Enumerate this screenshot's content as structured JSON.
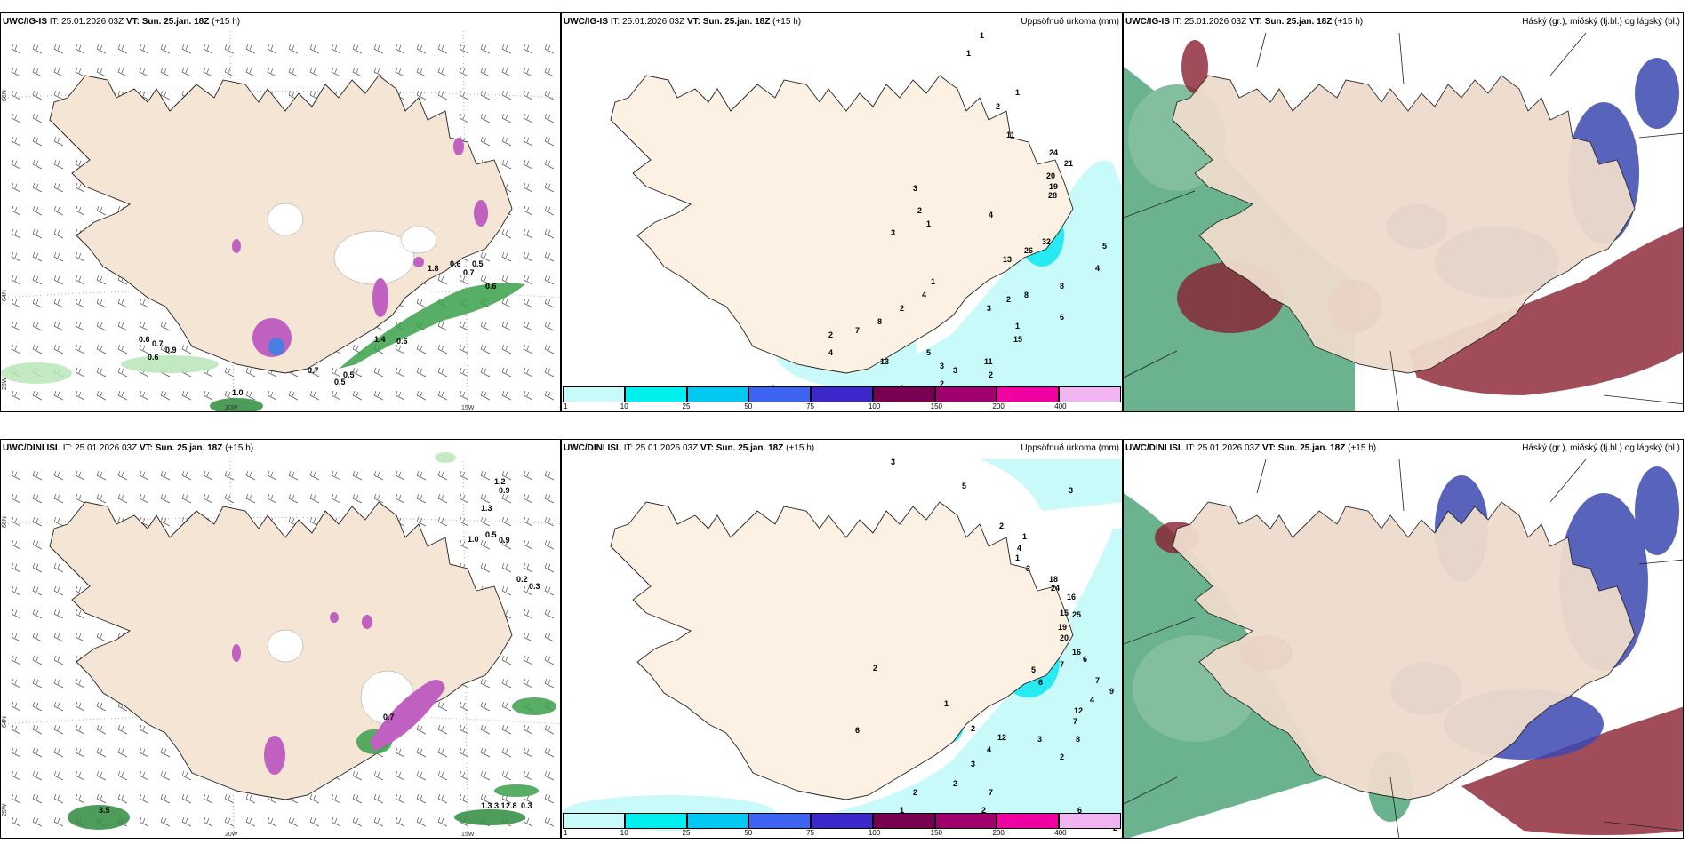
{
  "top": {
    "model_a": "UWC/IG-IS",
    "model_b": "UWC/IG-IS",
    "model_c": "UWC/IG-IS",
    "it_text": "IT: 25.01.2026 03Z",
    "vt_label": "VT:",
    "vt_text": "Sun. 25.jan. 18Z",
    "lead": "(+15 h)",
    "title_b": "Uppsöfnuð úrkoma (mm)",
    "title_c": "Háský (gr.), miðský (fj.bl.) og lágský (bl.)"
  },
  "bottom": {
    "model_a": "UWC/DINI ISL",
    "model_b": "UWC/DINI ISL",
    "model_c": "UWC/DINI ISL",
    "it_text": "IT: 25.01.2026 03Z",
    "vt_label": "VT:",
    "vt_text": "Sun. 25.jan. 18Z",
    "lead": "(+15 h)",
    "title_b": "Uppsöfnuð úrkoma (mm)",
    "title_c": "Háský (gr.), miðský (fj.bl.) og lágský (bl.)"
  },
  "grid_labels": {
    "lat66": "66N",
    "lat64": "64N",
    "lon25": "25W",
    "lon20": "20W",
    "lon15": "15W"
  },
  "colorbar": {
    "ticks": [
      "1",
      "10",
      "25",
      "50",
      "75",
      "100",
      "150",
      "200",
      "400"
    ],
    "colors": [
      "#c8fafa",
      "#00f0f0",
      "#00c8f0",
      "#3c64f0",
      "#3c28c8",
      "#780050",
      "#a0006e",
      "#f000a0",
      "#f0b4f0"
    ]
  },
  "top_a_values": [
    "0.6",
    "0.7",
    "0.9",
    "0.6",
    "1.0",
    "0.7",
    "0.5",
    "0.5",
    "1.4",
    "0.6",
    "0.6",
    "0.5",
    "0.7",
    "0.6",
    "1.8"
  ],
  "top_b_values": [
    "1",
    "1",
    "2",
    "1",
    "11",
    "24",
    "21",
    "20",
    "19",
    "28",
    "3",
    "2",
    "3",
    "1",
    "4",
    "32",
    "26",
    "13",
    "8",
    "4",
    "5",
    "8",
    "2",
    "3",
    "1",
    "4",
    "2",
    "8",
    "7",
    "11",
    "5",
    "3",
    "3",
    "2",
    "2",
    "9",
    "4",
    "2",
    "2",
    "13",
    "1",
    "15",
    "6"
  ],
  "bottom_a_values": [
    "1.2",
    "0.9",
    "1.3",
    "0.5",
    "1.0",
    "0.9",
    "0.2",
    "0.3",
    "0.3",
    "1.3",
    "3.1",
    "2.8",
    "3.5",
    "0.7"
  ],
  "bottom_b_values": [
    "3",
    "5",
    "2",
    "1",
    "4",
    "1",
    "3",
    "3",
    "18",
    "24",
    "16",
    "15",
    "25",
    "19",
    "20",
    "16",
    "6",
    "7",
    "5",
    "6",
    "7",
    "4",
    "9",
    "12",
    "7",
    "8",
    "3",
    "2",
    "12",
    "4",
    "3",
    "2",
    "2",
    "1",
    "7",
    "2",
    "1",
    "8",
    "6",
    "2",
    "3",
    "1",
    "2",
    "2",
    "6",
    "2"
  ]
}
